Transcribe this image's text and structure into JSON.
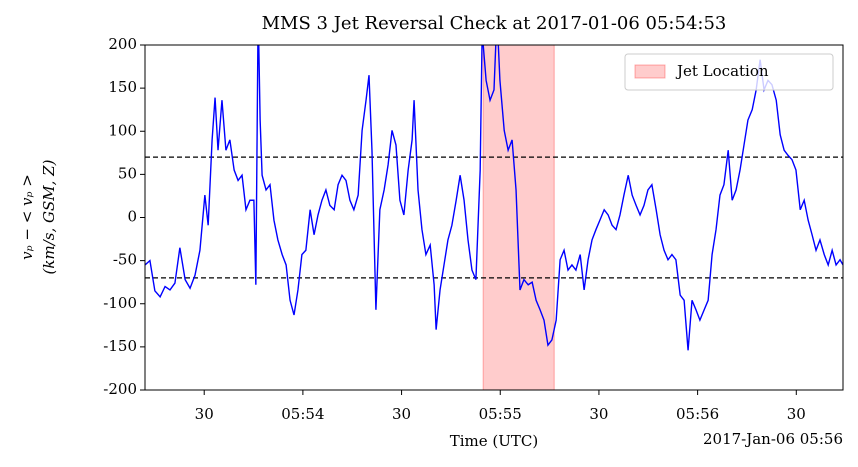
{
  "chart_data": {
    "type": "line",
    "title": "MMS 3 Jet Reversal Check at 2017-01-06 05:54:53",
    "xlabel": "Time (UTC)",
    "x_offset_label": "2017-Jan-06 05:56",
    "ylabel": [
      "vₚ − < vₚ >",
      "(km/s, GSM, Z)"
    ],
    "color": "#0000ff",
    "x": [
      "05:53:12.0",
      "05:53:13.5",
      "05:53:15.0",
      "05:53:16.6",
      "05:53:18.1",
      "05:53:19.6",
      "05:53:21.1",
      "05:53:22.6",
      "05:53:24.2",
      "05:53:25.7",
      "05:53:27.2",
      "05:53:28.7",
      "05:53:30.2",
      "05:53:31.2",
      "05:53:32.4",
      "05:53:33.3",
      "05:53:34.2",
      "05:53:35.4",
      "05:53:36.6",
      "05:53:37.8",
      "05:53:39.1",
      "05:53:40.3",
      "05:53:41.5",
      "05:53:42.7",
      "05:53:43.9",
      "05:53:45.1",
      "05:53:45.7",
      "05:53:46.4",
      "05:53:47.0",
      "05:53:47.6",
      "05:53:48.8",
      "05:53:50.0",
      "05:53:51.2",
      "05:53:52.4",
      "05:53:53.7",
      "05:53:54.9",
      "05:53:56.1",
      "05:53:57.3",
      "05:53:58.5",
      "05:53:59.7",
      "05:54:00.9",
      "05:54:02.2",
      "05:54:03.4",
      "05:54:04.6",
      "05:54:05.8",
      "05:54:07.0",
      "05:54:08.2",
      "05:54:09.5",
      "05:54:10.7",
      "05:54:11.9",
      "05:54:13.1",
      "05:54:14.3",
      "05:54:15.5",
      "05:54:16.8",
      "05:54:18.0",
      "05:54:19.2",
      "05:54:20.1",
      "05:54:21.0",
      "05:54:22.2",
      "05:54:23.4",
      "05:54:24.7",
      "05:54:25.9",
      "05:54:27.1",
      "05:54:28.3",
      "05:54:29.5",
      "05:54:30.7",
      "05:54:32.0",
      "05:54:33.2",
      "05:54:33.8",
      "05:54:35.0",
      "05:54:36.2",
      "05:54:37.4",
      "05:54:38.7",
      "05:54:39.9",
      "05:54:40.5",
      "05:54:41.7",
      "05:54:42.9",
      "05:54:44.1",
      "05:54:45.3",
      "05:54:46.6",
      "05:54:47.8",
      "05:54:49.0",
      "05:54:50.2",
      "05:54:51.4",
      "05:54:52.6",
      "05:54:53.9",
      "05:54:54.5",
      "05:54:55.7",
      "05:54:56.9",
      "05:54:58.1",
      "05:54:59.0",
      "05:54:59.9",
      "05:55:01.2",
      "05:55:02.4",
      "05:55:03.6",
      "05:55:04.8",
      "05:55:05.4",
      "05:55:06.0",
      "05:55:07.2",
      "05:55:08.5",
      "05:55:09.7",
      "05:55:10.9",
      "05:55:12.1",
      "05:55:13.3",
      "05:55:14.5",
      "05:55:15.7",
      "05:55:17.0",
      "05:55:18.2",
      "05:55:19.4",
      "05:55:20.6",
      "05:55:21.8",
      "05:55:23.0",
      "05:55:24.3",
      "05:55:25.5",
      "05:55:26.7",
      "05:55:27.9",
      "05:55:29.1",
      "05:55:30.3",
      "05:55:31.6",
      "05:55:32.8",
      "05:55:34.0",
      "05:55:35.2",
      "05:55:36.4",
      "05:55:37.6",
      "05:55:38.9",
      "05:55:40.1",
      "05:55:41.3",
      "05:55:42.5",
      "05:55:43.7",
      "05:55:44.9",
      "05:55:46.1",
      "05:55:47.4",
      "05:55:48.6",
      "05:55:49.8",
      "05:55:51.0",
      "05:55:52.2",
      "05:55:53.4",
      "05:55:54.7",
      "05:55:55.9",
      "05:55:57.1",
      "05:55:58.3",
      "05:55:59.5",
      "05:56:00.7",
      "05:56:02.0",
      "05:56:03.2",
      "05:56:04.4",
      "05:56:05.6",
      "05:56:06.8",
      "05:56:08.0",
      "05:56:09.3",
      "05:56:10.5",
      "05:56:11.7",
      "05:56:12.9",
      "05:56:14.1",
      "05:56:15.3",
      "05:56:16.6",
      "05:56:17.8",
      "05:56:19.0",
      "05:56:20.2",
      "05:56:21.4",
      "05:56:22.6",
      "05:56:23.9",
      "05:56:25.1",
      "05:56:26.3",
      "05:56:27.5",
      "05:56:28.7",
      "05:56:29.9",
      "05:56:31.2",
      "05:56:32.4",
      "05:56:33.6",
      "05:56:34.8",
      "05:56:36.0",
      "05:56:37.2",
      "05:56:38.5",
      "05:56:39.7",
      "05:56:40.9",
      "05:56:42.1",
      "05:56:43.3",
      "05:56:44.2"
    ],
    "values": [
      -55,
      -50,
      -85,
      -92,
      -80,
      -84,
      -76,
      -35,
      -72,
      -82,
      -67,
      -38,
      26,
      -9,
      90,
      139,
      78,
      136,
      78,
      90,
      55,
      43,
      49,
      9,
      20,
      20,
      -78,
      240,
      113,
      49,
      32,
      38,
      -3,
      -26,
      -43,
      -55,
      -96,
      -113,
      -84,
      -43,
      -38,
      9,
      -20,
      3,
      20,
      32,
      14,
      9,
      38,
      49,
      43,
      20,
      9,
      26,
      101,
      136,
      165,
      78,
      -107,
      9,
      32,
      61,
      101,
      84,
      20,
      3,
      55,
      90,
      136,
      32,
      -14,
      -43,
      -32,
      -78,
      -130,
      -84,
      -55,
      -26,
      -9,
      20,
      49,
      20,
      -26,
      -61,
      -72,
      55,
      215,
      159,
      136,
      148,
      235,
      159,
      101,
      78,
      90,
      32,
      -26,
      -84,
      -72,
      -78,
      -75,
      -96,
      -107,
      -119,
      -148,
      -142,
      -119,
      -49,
      -38,
      -61,
      -55,
      -61,
      -43,
      -84,
      -49,
      -26,
      -14,
      -3,
      9,
      3,
      -9,
      -14,
      3,
      26,
      49,
      26,
      14,
      3,
      14,
      32,
      38,
      9,
      -20,
      -38,
      -49,
      -43,
      -49,
      -90,
      -96,
      -154,
      -96,
      -107,
      -119,
      -107,
      -96,
      -43,
      -14,
      26,
      38,
      78,
      20,
      32,
      55,
      84,
      113,
      125,
      148,
      183,
      148,
      159,
      154,
      136,
      96,
      78,
      72,
      67,
      55,
      9,
      20,
      -3,
      -20,
      -38,
      -26,
      -43,
      -55,
      -38,
      -55,
      -49,
      -55
    ],
    "xlim": [
      "05:53:12.0",
      "05:56:44.2"
    ],
    "xticks": [
      {
        "value": "05:53:30",
        "label": "30"
      },
      {
        "value": "05:54:00",
        "label": "05:54"
      },
      {
        "value": "05:54:30",
        "label": "30"
      },
      {
        "value": "05:55:00",
        "label": "05:55"
      },
      {
        "value": "05:55:30",
        "label": "30"
      },
      {
        "value": "05:56:00",
        "label": "05:56"
      },
      {
        "value": "05:56:30",
        "label": "30"
      }
    ],
    "ylim": [
      -200,
      200
    ],
    "yticks": [
      -200,
      -150,
      -100,
      -50,
      0,
      50,
      100,
      150,
      200
    ],
    "hlines": [
      70,
      -70
    ],
    "span": {
      "x": [
        "05:54:54.8",
        "05:55:16.4"
      ],
      "label": "Jet Location",
      "color": "#ff0000"
    },
    "legend": "upper right",
    "grid": false
  }
}
